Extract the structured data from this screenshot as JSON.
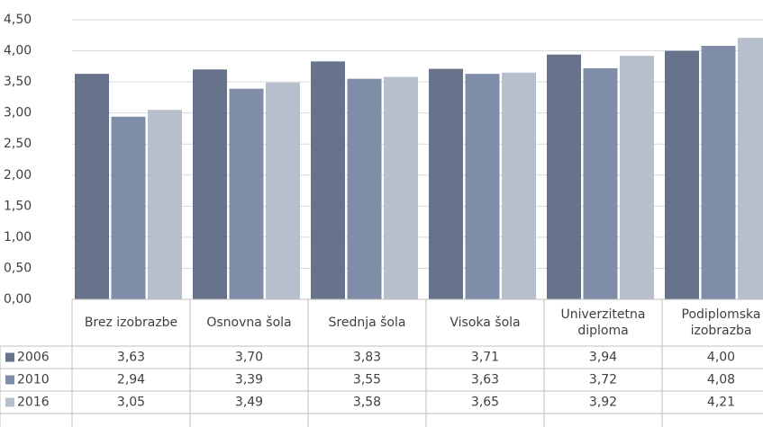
{
  "chart_data": {
    "type": "bar",
    "categories": [
      "Brez izobrazbe",
      "Osnovna šola",
      "Srednja šola",
      "Visoka šola",
      "Univerzitetna diploma",
      "Podiplomska izobrazba"
    ],
    "series": [
      {
        "name": "2006",
        "color": "#67738a",
        "values": [
          3.63,
          3.7,
          3.83,
          3.71,
          3.94,
          4.0
        ],
        "value_labels": [
          "3,63",
          "3,70",
          "3,83",
          "3,71",
          "3,94",
          "4,00"
        ]
      },
      {
        "name": "2010",
        "color": "#7f8da8",
        "values": [
          2.94,
          3.39,
          3.55,
          3.63,
          3.72,
          4.08
        ],
        "value_labels": [
          "2,94",
          "3,39",
          "3,55",
          "3,63",
          "3,72",
          "4,08"
        ]
      },
      {
        "name": "2016",
        "color": "#b8bfcc",
        "values": [
          3.05,
          3.49,
          3.58,
          3.65,
          3.92,
          4.21
        ],
        "value_labels": [
          "3,05",
          "3,49",
          "3,58",
          "3,65",
          "3,92",
          "4,21"
        ]
      }
    ],
    "ylim": [
      0,
      4.5
    ],
    "yticks": [
      {
        "value": 0,
        "label": "0,00"
      },
      {
        "value": 0.5,
        "label": "0,50"
      },
      {
        "value": 1,
        "label": "1,00"
      },
      {
        "value": 1.5,
        "label": "1,50"
      },
      {
        "value": 2,
        "label": "2,00"
      },
      {
        "value": 2.5,
        "label": "2,50"
      },
      {
        "value": 3,
        "label": "3,00"
      },
      {
        "value": 3.5,
        "label": "3,50"
      },
      {
        "value": 4,
        "label": "4,00"
      },
      {
        "value": 4.5,
        "label": "4,50"
      }
    ],
    "grid": true
  }
}
